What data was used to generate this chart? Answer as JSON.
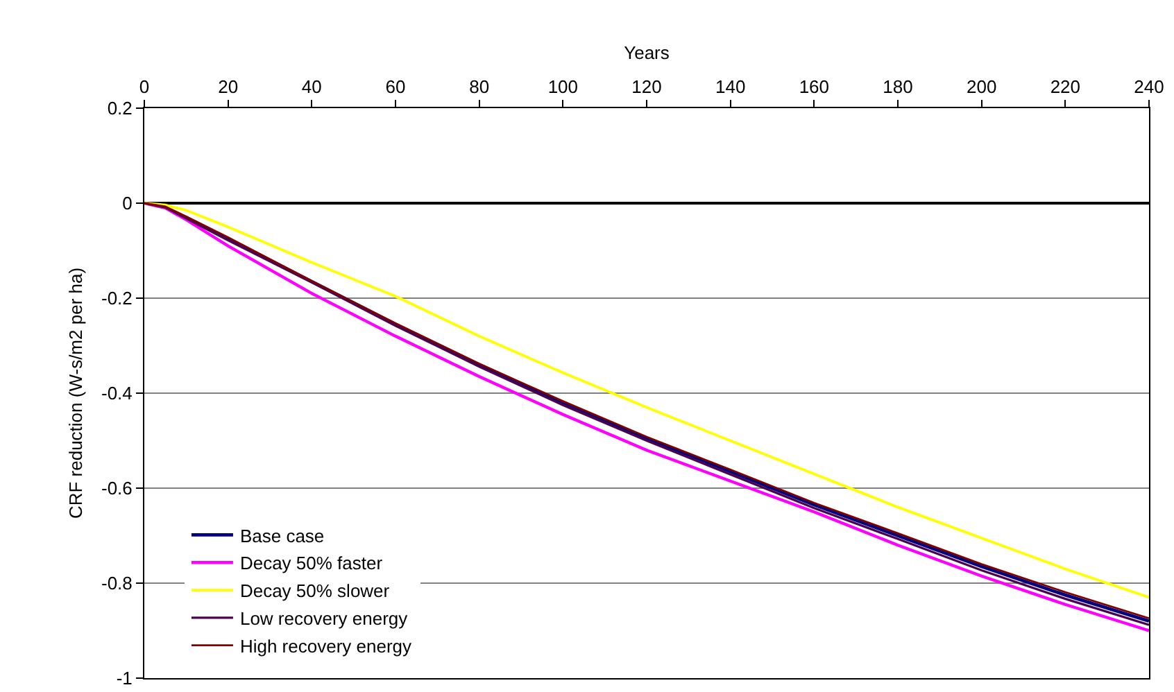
{
  "chart_data": {
    "type": "line",
    "xlabel": "Years",
    "ylabel": "CRF reduction (W-s/m2 per ha)",
    "x": [
      0,
      5,
      10,
      20,
      40,
      60,
      80,
      100,
      120,
      140,
      160,
      180,
      200,
      220,
      240
    ],
    "series": [
      {
        "name": "Base case",
        "color": "#000080",
        "values": [
          null,
          null,
          -0.03,
          -0.075,
          -0.165,
          -0.255,
          -0.34,
          -0.42,
          -0.495,
          -0.565,
          -0.635,
          -0.7,
          -0.765,
          -0.825,
          -0.88
        ]
      },
      {
        "name": "Decay 50% faster",
        "color": "#ff00ff",
        "values": [
          0,
          -0.01,
          -0.035,
          -0.09,
          -0.19,
          -0.28,
          -0.365,
          -0.445,
          -0.52,
          -0.585,
          -0.65,
          -0.72,
          -0.785,
          -0.845,
          -0.9
        ]
      },
      {
        "name": "Decay 50% slower",
        "color": "#ffff00",
        "values": [
          0,
          -0.004,
          -0.015,
          -0.05,
          -0.125,
          -0.196,
          -0.28,
          -0.357,
          -0.43,
          -0.5,
          -0.57,
          -0.64,
          -0.705,
          -0.77,
          -0.83
        ]
      },
      {
        "name": "Low recovery energy",
        "color": "#4b0050",
        "values": [
          0,
          -0.009,
          -0.032,
          -0.078,
          -0.167,
          -0.258,
          -0.344,
          -0.425,
          -0.5,
          -0.571,
          -0.642,
          -0.707,
          -0.773,
          -0.833,
          -0.888
        ]
      },
      {
        "name": "High recovery energy",
        "color": "#800000",
        "values": [
          0,
          -0.007,
          -0.028,
          -0.072,
          -0.164,
          -0.253,
          -0.338,
          -0.417,
          -0.492,
          -0.561,
          -0.631,
          -0.695,
          -0.76,
          -0.819,
          -0.874
        ]
      }
    ],
    "xlim": [
      0,
      240
    ],
    "xticks": [
      0,
      20,
      40,
      60,
      80,
      100,
      120,
      140,
      160,
      180,
      200,
      220,
      240
    ],
    "ylim": [
      -1,
      0.2
    ],
    "yticks": [
      0.2,
      0,
      -0.2,
      -0.4,
      -0.6,
      -0.8,
      -1
    ],
    "grid": "y",
    "legend": "bottom left",
    "marker": "none",
    "line_style": "solid"
  }
}
